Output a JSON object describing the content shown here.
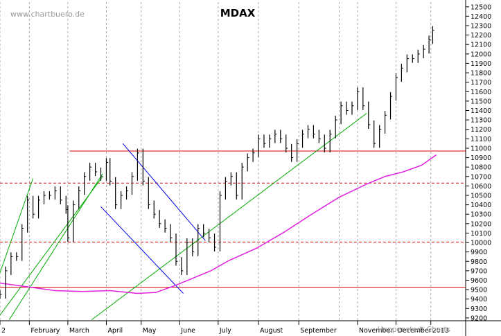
{
  "chart_data": {
    "type": "line",
    "title": "MDAX",
    "source": "www.chartbuero.de",
    "watermark": "Hoppenstedt Charts",
    "ylim": [
      9170,
      12550
    ],
    "yticks": [
      9200,
      9300,
      9400,
      9500,
      9600,
      9700,
      9800,
      9900,
      10000,
      10100,
      10200,
      10300,
      10400,
      10500,
      10600,
      10700,
      10800,
      10900,
      11000,
      11100,
      11200,
      11300,
      11400,
      11500,
      11600,
      11700,
      11800,
      11900,
      12000,
      12100,
      12200,
      12300,
      12400,
      12500
    ],
    "xlim": [
      0,
      254
    ],
    "xtick_labels": [
      {
        "x": 0,
        "label": "2"
      },
      {
        "x": 16,
        "label": "February"
      },
      {
        "x": 37,
        "label": "March"
      },
      {
        "x": 58,
        "label": "April"
      },
      {
        "x": 77,
        "label": "May"
      },
      {
        "x": 98,
        "label": "June"
      },
      {
        "x": 119,
        "label": "July"
      },
      {
        "x": 141,
        "label": "August"
      },
      {
        "x": 163,
        "label": "September"
      },
      {
        "x": 195,
        "label": "November"
      },
      {
        "x": 216,
        "label": "December"
      },
      {
        "x": 235,
        "label": "2013"
      }
    ],
    "month_starts": [
      0,
      16,
      37,
      58,
      77,
      98,
      119,
      141,
      163,
      185,
      195,
      216,
      235,
      254
    ],
    "grid": "vertical dashed at month starts",
    "series": [
      {
        "kind": "ohlc",
        "color": "#000000",
        "x": [
          0,
          3,
          6,
          9,
          12,
          15,
          18,
          21,
          24,
          27,
          30,
          33,
          36,
          37,
          40,
          43,
          46,
          49,
          52,
          55,
          58,
          60,
          63,
          66,
          69,
          72,
          75,
          78,
          81,
          84,
          87,
          90,
          93,
          96,
          99,
          102,
          105,
          108,
          111,
          114,
          117,
          120,
          123,
          126,
          129,
          132,
          135,
          138,
          141,
          144,
          147,
          150,
          153,
          156,
          159,
          162,
          165,
          168,
          171,
          174,
          177,
          180,
          183,
          186,
          189,
          192,
          195,
          198,
          201,
          204,
          207,
          210,
          213,
          216,
          219,
          222,
          225,
          228,
          231,
          234,
          236
        ],
        "y": [
          9450,
          9700,
          9850,
          9850,
          10150,
          10450,
          10300,
          10450,
          10500,
          10500,
          10550,
          10450,
          10350,
          10050,
          10400,
          10550,
          10700,
          10800,
          10750,
          10700,
          10850,
          10650,
          10400,
          10500,
          10550,
          10700,
          10950,
          10650,
          10400,
          10300,
          10200,
          10150,
          10050,
          9800,
          9700,
          10000,
          9900,
          10150,
          10100,
          10050,
          9950,
          10500,
          10650,
          10700,
          10500,
          10800,
          10900,
          10950,
          11100,
          11050,
          11100,
          11150,
          11100,
          11000,
          10900,
          11050,
          11150,
          11200,
          11150,
          11100,
          11000,
          11150,
          11300,
          11450,
          11400,
          11450,
          11600,
          11450,
          11250,
          11050,
          11200,
          11350,
          11550,
          11750,
          11850,
          11950,
          11950,
          12000,
          12050,
          12150,
          12250
        ]
      },
      {
        "kind": "moving-average",
        "color": "#e020e0",
        "x": [
          0,
          15,
          30,
          45,
          60,
          75,
          85,
          95,
          105,
          115,
          125,
          140,
          155,
          170,
          185,
          200,
          210,
          220,
          230,
          238
        ],
        "y": [
          9570,
          9530,
          9490,
          9480,
          9490,
          9460,
          9470,
          9540,
          9620,
          9700,
          9810,
          9940,
          10110,
          10300,
          10480,
          10620,
          10700,
          10750,
          10820,
          10930
        ]
      }
    ],
    "lines": [
      {
        "kind": "horizontal",
        "style": "solid",
        "color": "#d40000",
        "y": 10970,
        "x": [
          38,
          254
        ]
      },
      {
        "kind": "horizontal",
        "style": "dashed",
        "color": "#d40000",
        "y": 10630,
        "x": [
          0,
          254
        ]
      },
      {
        "kind": "horizontal",
        "style": "dashed",
        "color": "#d40000",
        "y": 10005,
        "x": [
          0,
          254
        ]
      },
      {
        "kind": "horizontal",
        "style": "solid",
        "color": "#d40000",
        "y": 9525,
        "x": [
          0,
          254
        ]
      },
      {
        "kind": "trend",
        "color": "#00aa00",
        "from": [
          0,
          9680
        ],
        "to": [
          18,
          10680
        ]
      },
      {
        "kind": "trend",
        "color": "#00aa00",
        "from": [
          0,
          9230
        ],
        "to": [
          56,
          10700
        ]
      },
      {
        "kind": "trend",
        "color": "#00aa00",
        "from": [
          5,
          9180
        ],
        "to": [
          56,
          10730
        ]
      },
      {
        "kind": "trend",
        "color": "#00aa00",
        "from": [
          50,
          9180
        ],
        "to": [
          200,
          11370
        ]
      },
      {
        "kind": "trend",
        "color": "#0000ee",
        "from": [
          67,
          11050
        ],
        "to": [
          112,
          10020
        ]
      },
      {
        "kind": "trend",
        "color": "#0000ee",
        "from": [
          55,
          10380
        ],
        "to": [
          100,
          9460
        ]
      }
    ],
    "colors": {
      "price": "#000000",
      "moving_average": "#e020e0",
      "support_resistance": "#d40000",
      "uptrend": "#00aa00",
      "downtrend_channel": "#0000ee",
      "grid": "#aaaaaa"
    }
  }
}
